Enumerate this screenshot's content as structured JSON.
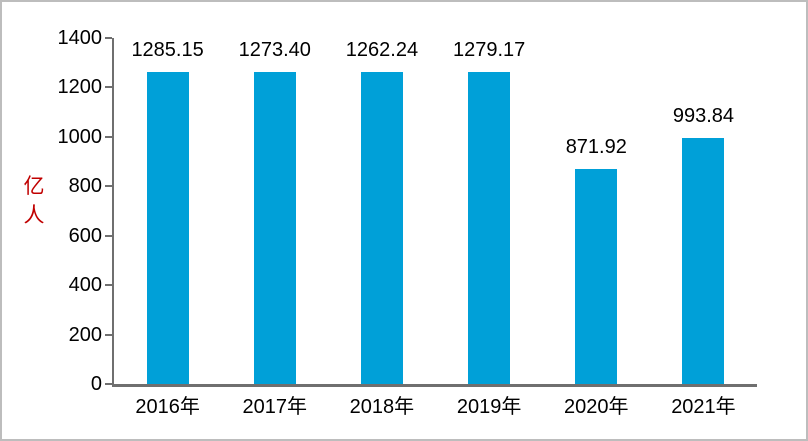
{
  "figure": {
    "border_color": "#BDBDBD",
    "background": "#FFFFFF"
  },
  "chart_data": {
    "type": "bar",
    "title": "",
    "categories": [
      "2016年",
      "2017年",
      "2018年",
      "2019年",
      "2020年",
      "2021年"
    ],
    "values": [
      1285.15,
      1273.4,
      1262.24,
      1279.17,
      871.92,
      993.84
    ],
    "value_labels": [
      "1285.15",
      "1273.40",
      "1262.24",
      "1279.17",
      "871.92",
      "993.84"
    ],
    "xlabel": "",
    "ylabel": "亿\n人",
    "ylabel_color": "#C00000",
    "ylim": [
      0,
      1400
    ],
    "yticks": [
      0,
      200,
      400,
      600,
      800,
      1000,
      1200,
      1400
    ],
    "grid": false,
    "legend": "none",
    "bar_color": "#00A0D8",
    "axis_color": "#6F6F6F",
    "text_color": "#000000"
  }
}
